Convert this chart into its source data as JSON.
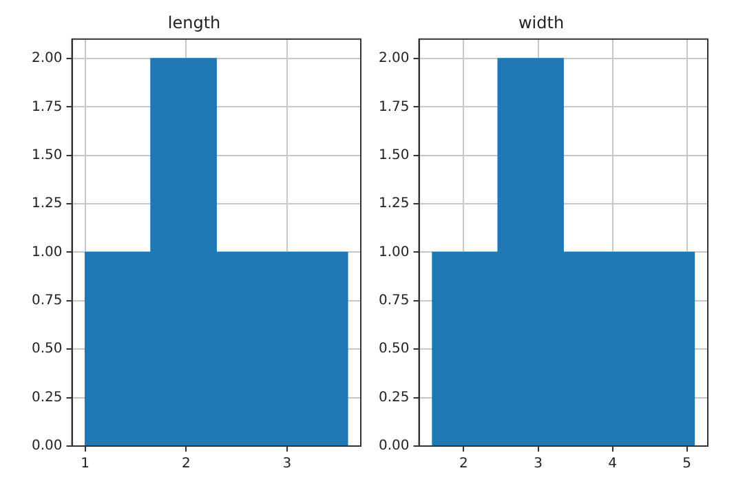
{
  "chart_data": [
    {
      "type": "histogram",
      "title": "length",
      "bins": [
        1,
        1.65,
        2.3,
        2.95,
        3.6
      ],
      "values": [
        1,
        2,
        1,
        1
      ],
      "color": "#1f77b4",
      "xlim": [
        0.87,
        3.73
      ],
      "xticks": [
        1,
        2,
        3
      ],
      "ylim": [
        0,
        2.1
      ],
      "yticks": [
        {
          "value": 0,
          "label": "0.00"
        },
        {
          "value": 0.25,
          "label": "0.25"
        },
        {
          "value": 0.5,
          "label": "0.50"
        },
        {
          "value": 0.75,
          "label": "0.75"
        },
        {
          "value": 1,
          "label": "1.00"
        },
        {
          "value": 1.25,
          "label": "1.25"
        },
        {
          "value": 1.5,
          "label": "1.50"
        },
        {
          "value": 1.75,
          "label": "1.75"
        },
        {
          "value": 2,
          "label": "2.00"
        }
      ],
      "grid": true
    },
    {
      "type": "histogram",
      "title": "width",
      "bins": [
        1.58,
        2.46,
        3.34,
        4.22,
        5.1
      ],
      "values": [
        1,
        2,
        1,
        1
      ],
      "color": "#1f77b4",
      "xlim": [
        1.4,
        5.28
      ],
      "xticks": [
        2,
        3,
        4,
        5
      ],
      "ylim": [
        0,
        2.1
      ],
      "yticks": [
        {
          "value": 0,
          "label": "0.00"
        },
        {
          "value": 0.25,
          "label": "0.25"
        },
        {
          "value": 0.5,
          "label": "0.50"
        },
        {
          "value": 0.75,
          "label": "0.75"
        },
        {
          "value": 1,
          "label": "1.00"
        },
        {
          "value": 1.25,
          "label": "1.25"
        },
        {
          "value": 1.5,
          "label": "1.50"
        },
        {
          "value": 1.75,
          "label": "1.75"
        },
        {
          "value": 2,
          "label": "2.00"
        }
      ],
      "grid": true
    }
  ]
}
